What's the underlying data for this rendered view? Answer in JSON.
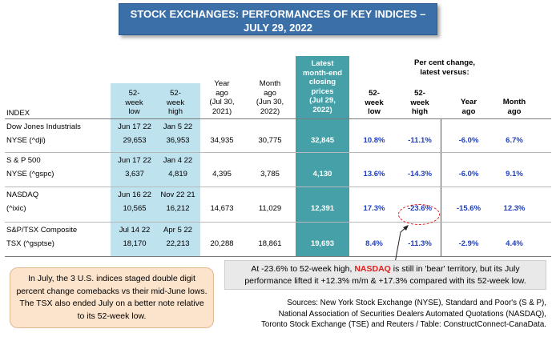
{
  "title": {
    "line1": "STOCK EXCHANGES: PERFORMANCES OF KEY INDICES –",
    "line2": "JULY 29, 2022"
  },
  "chart_data": {
    "type": "table",
    "headers": {
      "index": "INDEX",
      "low52": [
        "52-",
        "week",
        "low"
      ],
      "high52": [
        "52-",
        "week",
        "high"
      ],
      "year_ago": [
        "Year",
        "ago",
        "(Jul 30,",
        "2021)"
      ],
      "month_ago": [
        "Month",
        "ago",
        "(Jun 30,",
        "2022)"
      ],
      "latest": [
        "Latest",
        "month-end",
        "closing",
        "prices",
        "(Jul 29,",
        "2022)"
      ],
      "pct_group": [
        "Per cent change,",
        "latest versus:"
      ],
      "pct_low52": [
        "52-",
        "week",
        "low"
      ],
      "pct_high52": [
        "52-",
        "week",
        "high"
      ],
      "pct_year": [
        "Year",
        "ago"
      ],
      "pct_month": [
        "Month",
        "ago"
      ]
    },
    "rows": [
      {
        "name1": "Dow Jones Industrials",
        "name2": "NYSE (^dji)",
        "low_date": "Jun 17 22",
        "low_val": "29,653",
        "high_date": "Jan 5 22",
        "high_val": "36,953",
        "year_ago": "34,935",
        "month_ago": "30,775",
        "latest": "32,845",
        "pct_low": "10.8%",
        "pct_high": "-11.1%",
        "pct_year": "-6.0%",
        "pct_month": "6.7%"
      },
      {
        "name1": "S & P 500",
        "name2": "NYSE (^gspc)",
        "low_date": "Jun 17 22",
        "low_val": "3,637",
        "high_date": "Jan 4 22",
        "high_val": "4,819",
        "year_ago": "4,395",
        "month_ago": "3,785",
        "latest": "4,130",
        "pct_low": "13.6%",
        "pct_high": "-14.3%",
        "pct_year": "-6.0%",
        "pct_month": "9.1%"
      },
      {
        "name1": "NASDAQ",
        "name2": "(^ixic)",
        "low_date": "Jun 16 22",
        "low_val": "10,565",
        "high_date": "Nov 22 21",
        "high_val": "16,212",
        "year_ago": "14,673",
        "month_ago": "11,029",
        "latest": "12,391",
        "pct_low": "17.3%",
        "pct_high": "-23.6%",
        "pct_year": "-15.6%",
        "pct_month": "12.3%"
      },
      {
        "name1": "S&P/TSX Composite",
        "name2": "TSX (^gsptse)",
        "low_date": "Jul 14 22",
        "low_val": "18,170",
        "high_date": "Apr 5 22",
        "high_val": "22,213",
        "year_ago": "20,288",
        "month_ago": "18,861",
        "latest": "19,693",
        "pct_low": "8.4%",
        "pct_high": "-11.3%",
        "pct_year": "-2.9%",
        "pct_month": "4.4%"
      }
    ]
  },
  "callout_right": {
    "pre": "At -23.6% to 52-week high, ",
    "highlight": "NASDAQ",
    "post": " is still in 'bear' territory, but its July",
    "line2": "performance lifted it +12.3% m/m & +17.3% compared with its 52-week low."
  },
  "callout_left": {
    "text": "In July, the 3 U.S. indices staged double digit percent change comebacks vs their mid-June lows. The TSX also ended July on a better note relative to its 52-week low."
  },
  "sources": {
    "line1": "Sources: New York Stock Exchange (NYSE), Standard and Poor's (S & P),",
    "line2": "National Association of Securities Dealers Automated Quotations (NASDAQ),",
    "line3": "Toronto Stock Exchange (TSE) and Reuters / Table: ConstructConnect-CanaData."
  },
  "colors": {
    "banner": "#3b6fa8",
    "blue_cols": "#bfe2ef",
    "teal_col": "#45a1a7",
    "pct_text": "#1f3fbf",
    "highlight_red": "#e02020",
    "left_callout": "#fbe3cc"
  }
}
